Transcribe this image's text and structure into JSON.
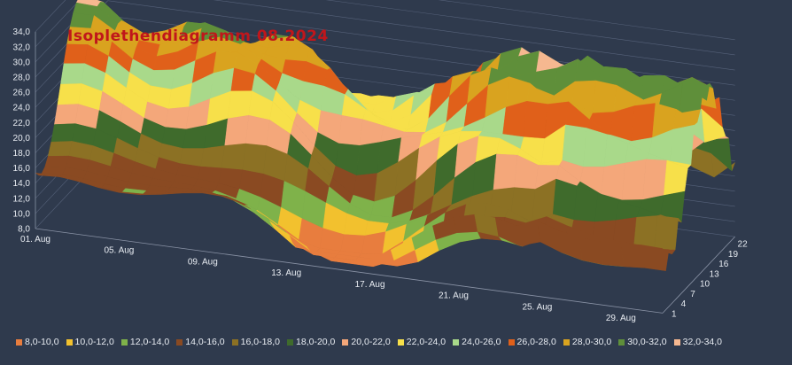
{
  "chart_data": {
    "type": "surface",
    "title": "Isoplethendiagramm 08.2024",
    "z_axis": {
      "min": 8.0,
      "max": 34.0,
      "step": 2.0,
      "tick_labels": [
        "8,0",
        "10,0",
        "12,0",
        "14,0",
        "16,0",
        "18,0",
        "20,0",
        "22,0",
        "24,0",
        "26,0",
        "28,0",
        "30,0",
        "32,0",
        "34,0"
      ]
    },
    "x_axis": {
      "tick_labels": [
        "01. Aug",
        "05. Aug",
        "09. Aug",
        "13. Aug",
        "17. Aug",
        "21. Aug",
        "25. Aug",
        "29. Aug"
      ]
    },
    "y_axis": {
      "tick_labels": [
        "1",
        "4",
        "7",
        "10",
        "13",
        "16",
        "19",
        "22"
      ]
    },
    "grid": true,
    "legend_position": "bottom",
    "bands": [
      {
        "label": "8,0-10,0",
        "color": "#e87d3e"
      },
      {
        "label": "10,0-12,0",
        "color": "#f2c12e"
      },
      {
        "label": "12,0-14,0",
        "color": "#7fb24a"
      },
      {
        "label": "14,0-16,0",
        "color": "#8a4a22"
      },
      {
        "label": "16,0-18,0",
        "color": "#8c7124"
      },
      {
        "label": "18,0-20,0",
        "color": "#3f6b2c"
      },
      {
        "label": "20,0-22,0",
        "color": "#f4a77a"
      },
      {
        "label": "22,0-24,0",
        "color": "#f7e04a"
      },
      {
        "label": "24,0-26,0",
        "color": "#a9d98a"
      },
      {
        "label": "26,0-28,0",
        "color": "#e0601a"
      },
      {
        "label": "28,0-30,0",
        "color": "#d9a31f"
      },
      {
        "label": "30,0-32,0",
        "color": "#5f8f3a"
      },
      {
        "label": "32,0-34,0",
        "color": "#f6b890"
      }
    ]
  }
}
